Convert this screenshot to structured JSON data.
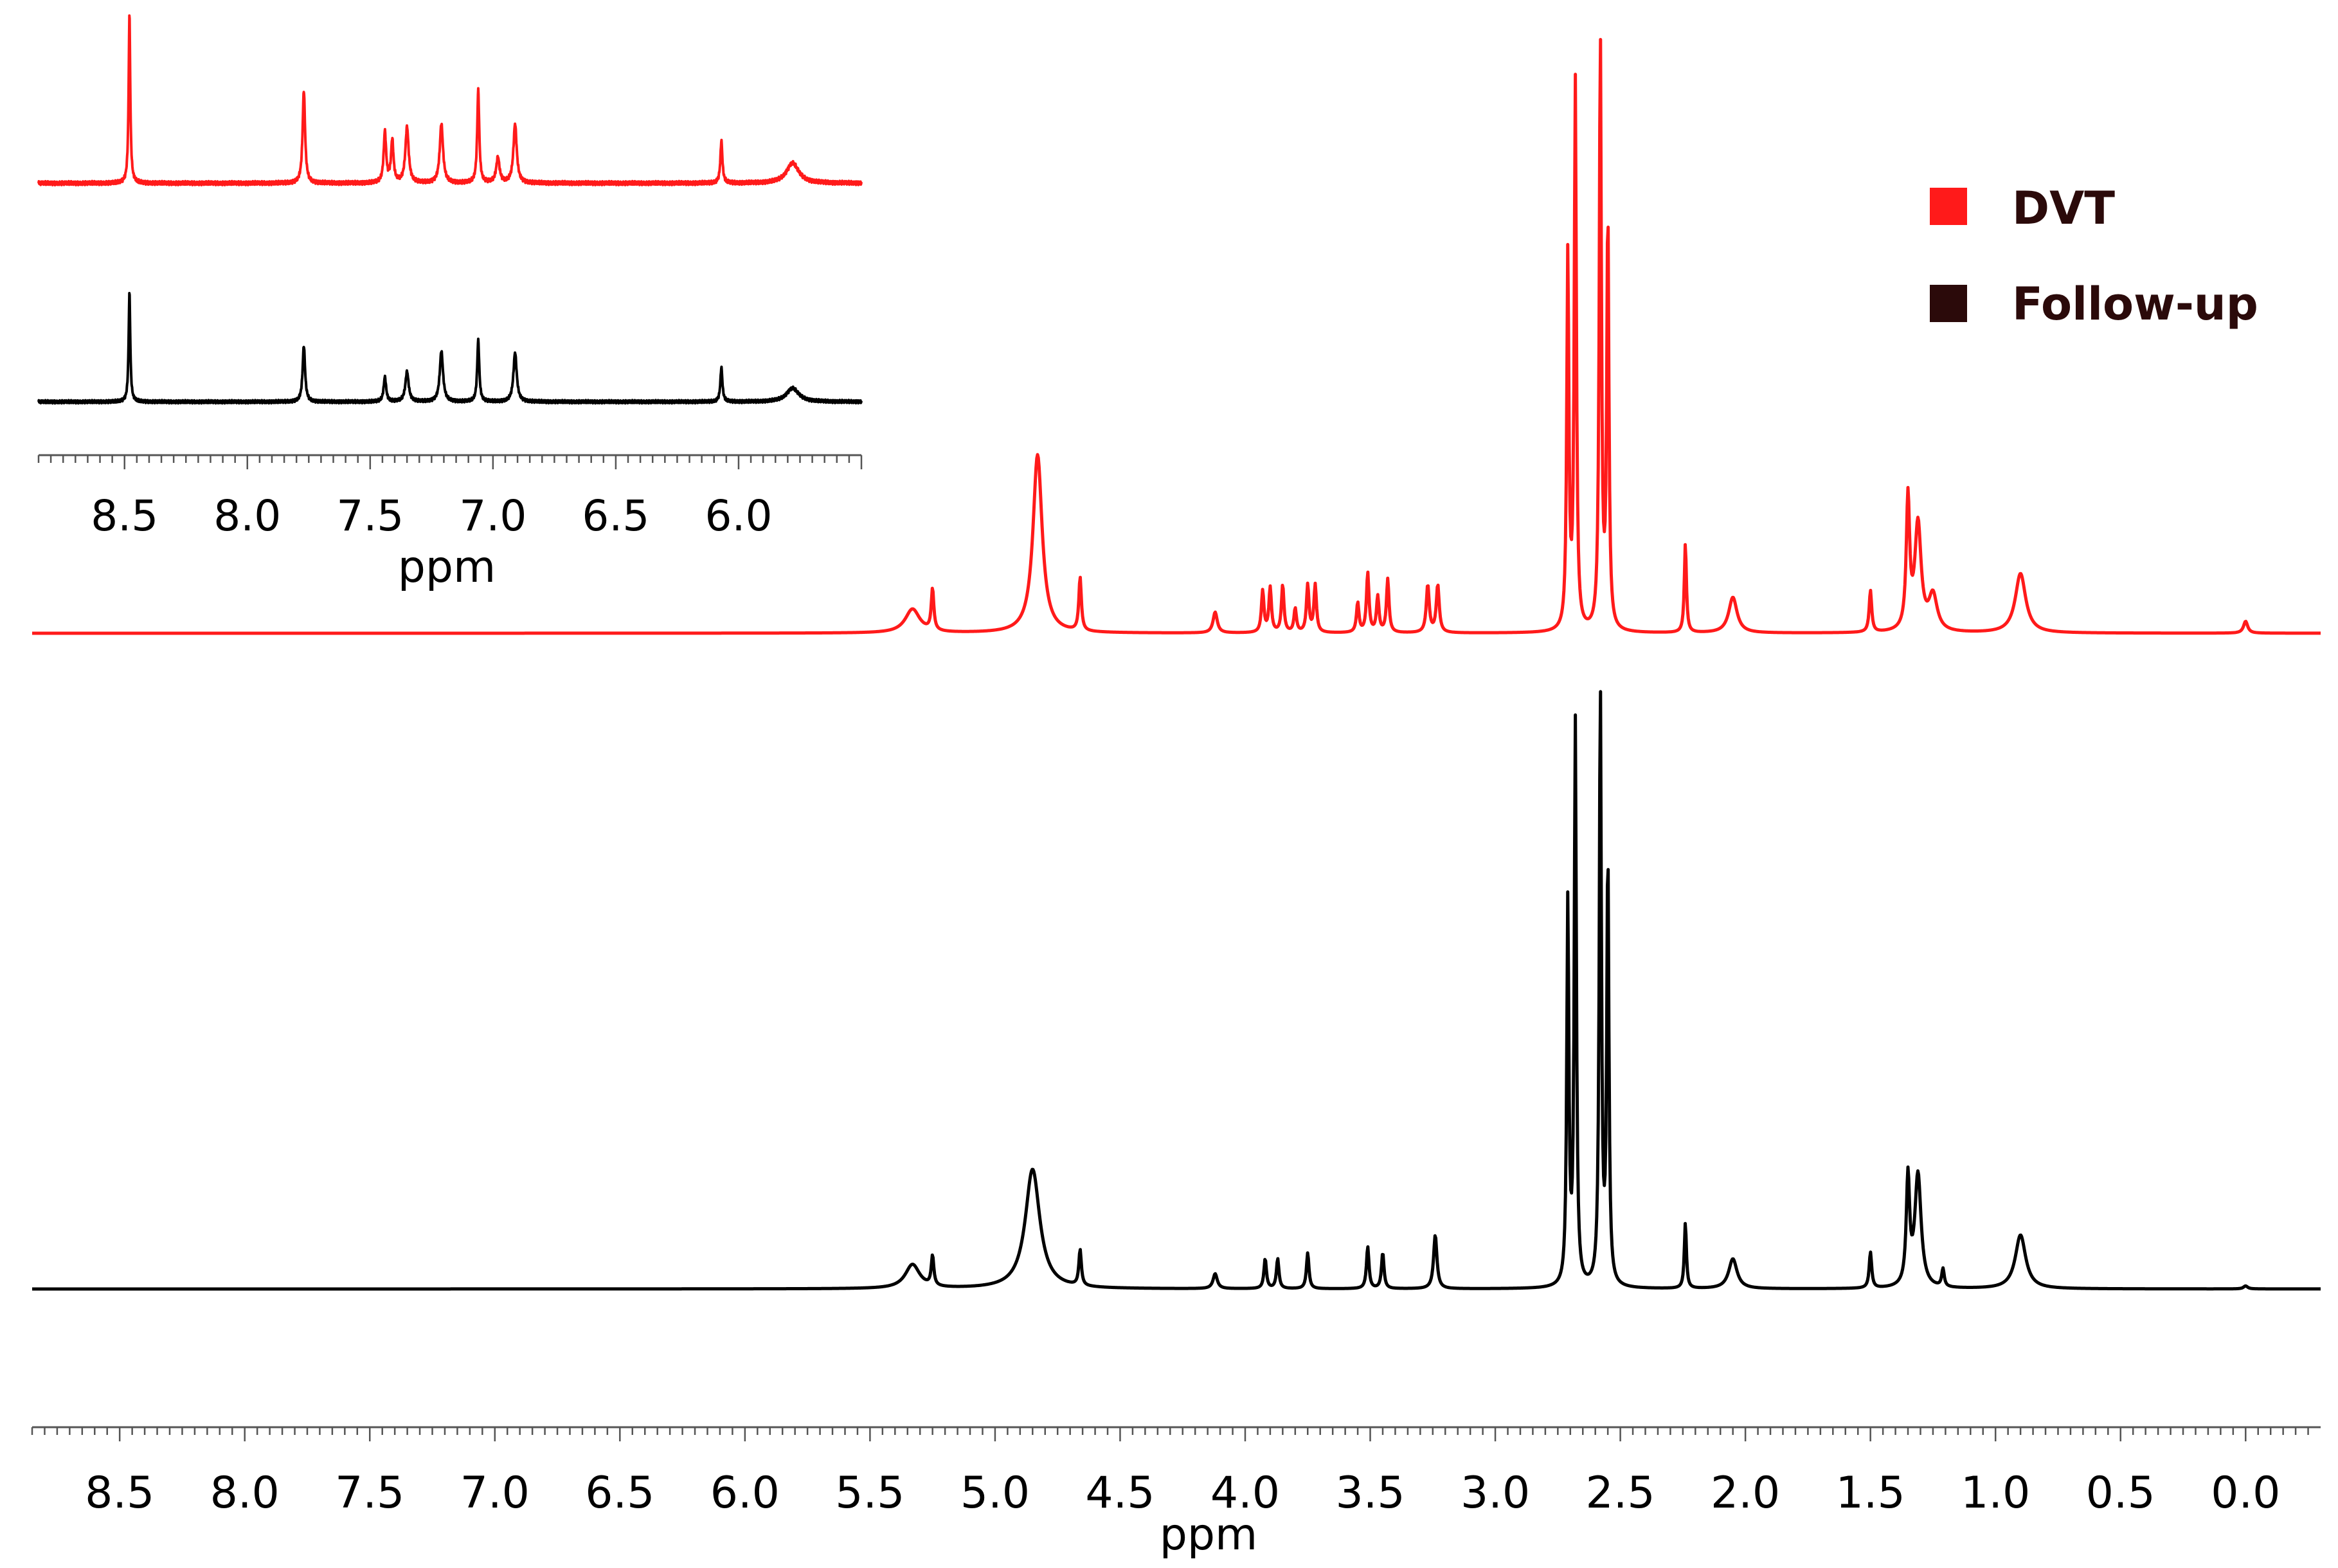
{
  "chart_data": [
    {
      "type": "line",
      "panel": "main",
      "xlabel": "ppm",
      "ylabel": "",
      "xlim": [
        8.85,
        -0.3
      ],
      "x_reversed": true,
      "x_ticks": [
        "8.5",
        "8.0",
        "7.5",
        "7.0",
        "6.5",
        "6.0",
        "5.5",
        "5.0",
        "4.5",
        "4.0",
        "3.5",
        "3.0",
        "2.5",
        "2.0",
        "1.5",
        "1.0",
        "0.5",
        "0.0"
      ],
      "x_tick_values": [
        8.5,
        8.0,
        7.5,
        7.0,
        6.5,
        6.0,
        5.5,
        5.0,
        4.5,
        4.0,
        3.5,
        3.0,
        2.5,
        2.0,
        1.5,
        1.0,
        0.5,
        0.0
      ],
      "y_axis_shown": false,
      "grid": false,
      "legend": {
        "placement": "top-right",
        "entries": [
          {
            "label": "DVT",
            "color": "#ff1a1a"
          },
          {
            "label": "Follow-up",
            "color": "#2b0a0a"
          }
        ]
      },
      "series": [
        {
          "name": "DVT",
          "color": "#ff1a1a",
          "peaks": [
            {
              "ppm": 5.33,
              "height": 0.04,
              "width": 0.035
            },
            {
              "ppm": 5.25,
              "height": 0.07,
              "width": 0.006
            },
            {
              "ppm": 4.83,
              "height": 0.3,
              "width": 0.022
            },
            {
              "ppm": 4.66,
              "height": 0.09,
              "width": 0.006
            },
            {
              "ppm": 4.12,
              "height": 0.035,
              "width": 0.01
            },
            {
              "ppm": 3.93,
              "height": 0.07,
              "width": 0.006
            },
            {
              "ppm": 3.9,
              "height": 0.075,
              "width": 0.006
            },
            {
              "ppm": 3.85,
              "height": 0.08,
              "width": 0.006
            },
            {
              "ppm": 3.8,
              "height": 0.04,
              "width": 0.006
            },
            {
              "ppm": 3.75,
              "height": 0.08,
              "width": 0.006
            },
            {
              "ppm": 3.72,
              "height": 0.08,
              "width": 0.006
            },
            {
              "ppm": 3.55,
              "height": 0.05,
              "width": 0.006
            },
            {
              "ppm": 3.51,
              "height": 0.1,
              "width": 0.006
            },
            {
              "ppm": 3.47,
              "height": 0.06,
              "width": 0.006
            },
            {
              "ppm": 3.43,
              "height": 0.09,
              "width": 0.006
            },
            {
              "ppm": 3.27,
              "height": 0.08,
              "width": 0.007
            },
            {
              "ppm": 3.23,
              "height": 0.08,
              "width": 0.007
            },
            {
              "ppm": 2.71,
              "height": 0.63,
              "width": 0.005
            },
            {
              "ppm": 2.68,
              "height": 0.92,
              "width": 0.005
            },
            {
              "ppm": 2.58,
              "height": 1.0,
              "width": 0.005
            },
            {
              "ppm": 2.55,
              "height": 0.7,
              "width": 0.005
            },
            {
              "ppm": 2.24,
              "height": 0.15,
              "width": 0.005
            },
            {
              "ppm": 2.05,
              "height": 0.06,
              "width": 0.02
            },
            {
              "ppm": 1.5,
              "height": 0.07,
              "width": 0.006
            },
            {
              "ppm": 1.35,
              "height": 0.22,
              "width": 0.008
            },
            {
              "ppm": 1.31,
              "height": 0.18,
              "width": 0.015
            },
            {
              "ppm": 1.25,
              "height": 0.06,
              "width": 0.02
            },
            {
              "ppm": 0.9,
              "height": 0.1,
              "width": 0.025
            },
            {
              "ppm": 0.0,
              "height": 0.02,
              "width": 0.01
            }
          ]
        },
        {
          "name": "Follow-up",
          "color": "#000000",
          "peaks": [
            {
              "ppm": 5.33,
              "height": 0.04,
              "width": 0.035
            },
            {
              "ppm": 5.25,
              "height": 0.05,
              "width": 0.006
            },
            {
              "ppm": 4.85,
              "height": 0.2,
              "width": 0.035
            },
            {
              "ppm": 4.66,
              "height": 0.06,
              "width": 0.006
            },
            {
              "ppm": 4.12,
              "height": 0.025,
              "width": 0.01
            },
            {
              "ppm": 3.92,
              "height": 0.05,
              "width": 0.006
            },
            {
              "ppm": 3.87,
              "height": 0.05,
              "width": 0.006
            },
            {
              "ppm": 3.75,
              "height": 0.06,
              "width": 0.006
            },
            {
              "ppm": 3.51,
              "height": 0.07,
              "width": 0.006
            },
            {
              "ppm": 3.45,
              "height": 0.06,
              "width": 0.006
            },
            {
              "ppm": 3.24,
              "height": 0.09,
              "width": 0.008
            },
            {
              "ppm": 2.71,
              "height": 0.64,
              "width": 0.005
            },
            {
              "ppm": 2.68,
              "height": 0.94,
              "width": 0.005
            },
            {
              "ppm": 2.58,
              "height": 1.0,
              "width": 0.005
            },
            {
              "ppm": 2.55,
              "height": 0.72,
              "width": 0.005
            },
            {
              "ppm": 2.24,
              "height": 0.11,
              "width": 0.005
            },
            {
              "ppm": 2.05,
              "height": 0.05,
              "width": 0.02
            },
            {
              "ppm": 1.5,
              "height": 0.06,
              "width": 0.006
            },
            {
              "ppm": 1.35,
              "height": 0.18,
              "width": 0.008
            },
            {
              "ppm": 1.31,
              "height": 0.19,
              "width": 0.015
            },
            {
              "ppm": 1.21,
              "height": 0.03,
              "width": 0.006
            },
            {
              "ppm": 0.9,
              "height": 0.09,
              "width": 0.025
            },
            {
              "ppm": 0.0,
              "height": 0.005,
              "width": 0.01
            }
          ]
        }
      ]
    },
    {
      "type": "line",
      "panel": "inset",
      "xlabel": "ppm",
      "ylabel": "",
      "xlim": [
        8.85,
        5.5
      ],
      "x_reversed": true,
      "x_ticks": [
        "8.5",
        "8.0",
        "7.5",
        "7.0",
        "6.5",
        "6.0"
      ],
      "x_tick_values": [
        8.5,
        8.0,
        7.5,
        7.0,
        6.5,
        6.0
      ],
      "y_axis_shown": false,
      "grid": false,
      "series": [
        {
          "name": "DVT",
          "color": "#ff1a1a",
          "peaks": [
            {
              "ppm": 8.48,
              "height": 1.0,
              "width": 0.004
            },
            {
              "ppm": 7.77,
              "height": 0.55,
              "width": 0.006
            },
            {
              "ppm": 7.44,
              "height": 0.3,
              "width": 0.006
            },
            {
              "ppm": 7.41,
              "height": 0.25,
              "width": 0.006
            },
            {
              "ppm": 7.35,
              "height": 0.33,
              "width": 0.008
            },
            {
              "ppm": 7.21,
              "height": 0.35,
              "width": 0.008
            },
            {
              "ppm": 7.06,
              "height": 0.55,
              "width": 0.005
            },
            {
              "ppm": 6.98,
              "height": 0.15,
              "width": 0.008
            },
            {
              "ppm": 6.91,
              "height": 0.35,
              "width": 0.008
            },
            {
              "ppm": 6.07,
              "height": 0.25,
              "width": 0.005
            },
            {
              "ppm": 5.78,
              "height": 0.12,
              "width": 0.03
            }
          ]
        },
        {
          "name": "Follow-up",
          "color": "#000000",
          "peaks": [
            {
              "ppm": 8.48,
              "height": 0.8,
              "width": 0.004
            },
            {
              "ppm": 7.77,
              "height": 0.41,
              "width": 0.006
            },
            {
              "ppm": 7.44,
              "height": 0.18,
              "width": 0.006
            },
            {
              "ppm": 7.35,
              "height": 0.22,
              "width": 0.008
            },
            {
              "ppm": 7.21,
              "height": 0.37,
              "width": 0.008
            },
            {
              "ppm": 7.06,
              "height": 0.45,
              "width": 0.005
            },
            {
              "ppm": 6.91,
              "height": 0.36,
              "width": 0.008
            },
            {
              "ppm": 6.07,
              "height": 0.25,
              "width": 0.005
            },
            {
              "ppm": 5.78,
              "height": 0.1,
              "width": 0.03
            }
          ]
        }
      ]
    }
  ]
}
